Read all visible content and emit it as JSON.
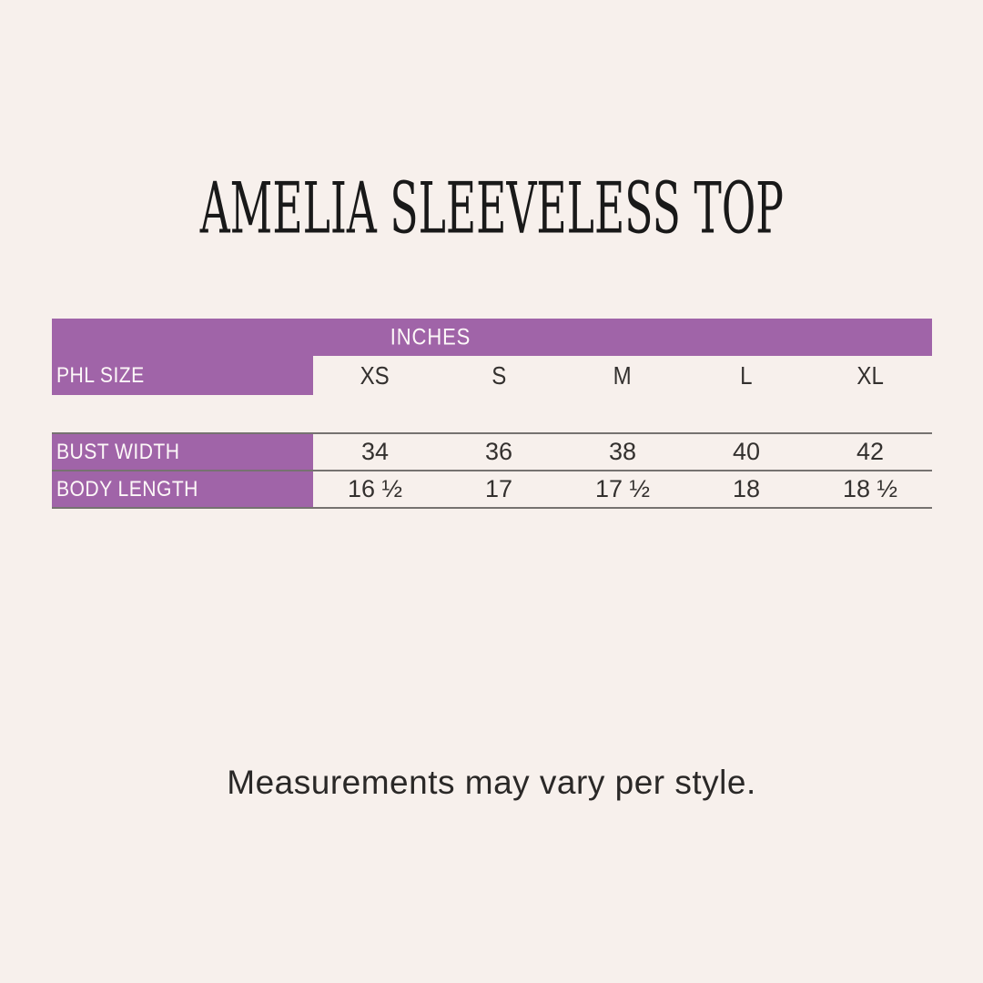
{
  "page": {
    "background_color": "#f7f0ec",
    "accent_color": "#a064a8",
    "line_color": "#767270",
    "text_color": "#33302e",
    "header_text_color": "#ffffff"
  },
  "chart_data": {
    "type": "table",
    "title": "AMELIA SLEEVELESS TOP",
    "unit_header": "INCHES",
    "row_header_label": "PHL SIZE",
    "columns": [
      "XS",
      "S",
      "M",
      "L",
      "XL"
    ],
    "rows": [
      {
        "label": "BUST WIDTH",
        "values": [
          "34",
          "36",
          "38",
          "40",
          "42"
        ]
      },
      {
        "label": "BODY LENGTH",
        "values": [
          "16 ½",
          "17",
          "17 ½",
          "18",
          "18 ½"
        ]
      }
    ],
    "footnote": "Measurements may vary per style.",
    "layout": {
      "grid": "off",
      "legend": "none",
      "unit_header_position": "top-merged-row"
    }
  }
}
